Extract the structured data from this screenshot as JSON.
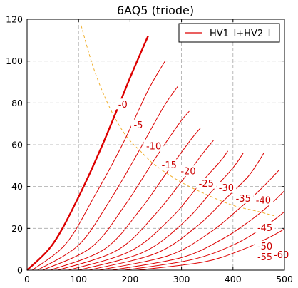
{
  "chart_data": {
    "type": "line",
    "title": "6AQ5 (triode)",
    "xlabel": "",
    "ylabel": "",
    "xlim": [
      0,
      500
    ],
    "ylim": [
      0,
      120
    ],
    "xticks": [
      0,
      100,
      200,
      300,
      400,
      500
    ],
    "yticks": [
      0,
      20,
      40,
      60,
      80,
      100,
      120
    ],
    "grid": true,
    "legend": {
      "placement": "top-right",
      "entries": [
        "HV1_I+HV2_I"
      ]
    },
    "curve_color": "#dd0000",
    "limit_color": "#f0b030",
    "curves": [
      {
        "grid_voltage": 0,
        "label": "-0",
        "x": [
          0,
          50,
          100,
          150,
          200,
          235
        ],
        "y": [
          0,
          12.5,
          35,
          62,
          92,
          112
        ],
        "bold": true
      },
      {
        "grid_voltage": -5,
        "label": "-5",
        "x": [
          10,
          75,
          130,
          185,
          235,
          268
        ],
        "y": [
          0,
          12.5,
          35,
          60,
          86,
          100
        ]
      },
      {
        "grid_voltage": -10,
        "label": "-10",
        "x": [
          20,
          100,
          160,
          215,
          265,
          293
        ],
        "y": [
          0,
          12,
          33,
          56,
          78,
          88
        ]
      },
      {
        "grid_voltage": -15,
        "label": "-15",
        "x": [
          30,
          125,
          190,
          245,
          295,
          315
        ],
        "y": [
          0,
          11,
          31,
          52,
          70,
          76
        ]
      },
      {
        "grid_voltage": -20,
        "label": "-20",
        "x": [
          45,
          150,
          220,
          275,
          320,
          337
        ],
        "y": [
          0,
          10,
          29,
          48,
          63,
          68
        ]
      },
      {
        "grid_voltage": -25,
        "label": "-25",
        "x": [
          60,
          175,
          250,
          305,
          345,
          362
        ],
        "y": [
          0,
          9.5,
          27,
          44,
          57,
          62
        ]
      },
      {
        "grid_voltage": -30,
        "label": "-30",
        "x": [
          80,
          200,
          280,
          335,
          375,
          390
        ],
        "y": [
          0,
          9,
          25,
          41,
          52,
          57
        ]
      },
      {
        "grid_voltage": -35,
        "label": "-35",
        "x": [
          100,
          225,
          305,
          360,
          400,
          420
        ],
        "y": [
          0,
          8.5,
          23,
          38,
          49,
          56
        ]
      },
      {
        "grid_voltage": -40,
        "label": "-40",
        "x": [
          120,
          250,
          330,
          385,
          430,
          460
        ],
        "y": [
          0,
          8,
          21,
          34,
          45,
          56
        ]
      },
      {
        "grid_voltage": -45,
        "label": "-45",
        "x": [
          140,
          275,
          355,
          410,
          455,
          490
        ],
        "y": [
          0,
          7,
          18,
          29,
          39,
          48
        ]
      },
      {
        "grid_voltage": -50,
        "label": "-50",
        "x": [
          165,
          300,
          380,
          435,
          475,
          500
        ],
        "y": [
          0,
          6,
          15,
          24,
          32,
          38
        ]
      },
      {
        "grid_voltage": -55,
        "label": "-55",
        "x": [
          190,
          320,
          400,
          450,
          485,
          500
        ],
        "y": [
          0,
          5,
          12,
          19,
          25,
          28
        ]
      },
      {
        "grid_voltage": -60,
        "label": "-60",
        "x": [
          215,
          345,
          420,
          465,
          495,
          500
        ],
        "y": [
          0,
          4,
          10,
          15,
          19,
          20
        ]
      }
    ],
    "curve_labels": [
      {
        "text": "-0",
        "x": 186,
        "y": 79
      },
      {
        "text": "-5",
        "x": 216,
        "y": 69
      },
      {
        "text": "-10",
        "x": 246,
        "y": 59
      },
      {
        "text": "-15",
        "x": 276,
        "y": 50
      },
      {
        "text": "-20",
        "x": 313,
        "y": 47
      },
      {
        "text": "-25",
        "x": 348,
        "y": 41
      },
      {
        "text": "-30",
        "x": 387,
        "y": 39
      },
      {
        "text": "-35",
        "x": 420,
        "y": 34
      },
      {
        "text": "-40",
        "x": 459,
        "y": 33
      },
      {
        "text": "-45",
        "x": 462,
        "y": 20
      },
      {
        "text": "-50",
        "x": 462,
        "y": 11
      },
      {
        "text": "-55",
        "x": 462,
        "y": 6
      },
      {
        "text": "-60",
        "x": 494,
        "y": 7
      }
    ],
    "max_dissipation": {
      "x": [
        105,
        130,
        160,
        190,
        220,
        250,
        300,
        350,
        400,
        450,
        480
      ],
      "y": [
        117,
        96,
        78,
        65,
        57,
        50,
        42,
        36,
        31,
        28,
        26
      ]
    }
  }
}
